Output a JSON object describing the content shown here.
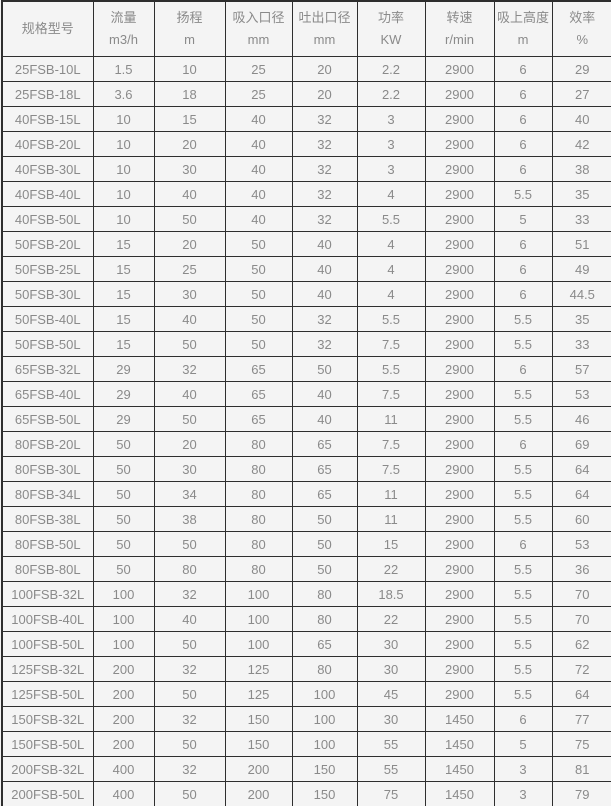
{
  "colors": {
    "cell_background": "#f4f4f4",
    "grid_border": "#2e2e2e",
    "text": "#8a8a8a"
  },
  "chart_data": {
    "type": "table",
    "title": "",
    "columns": [
      {
        "label": "规格型号",
        "unit": ""
      },
      {
        "label": "流量",
        "unit": "m3/h"
      },
      {
        "label": "扬程",
        "unit": "m"
      },
      {
        "label": "吸入口径",
        "unit": "mm"
      },
      {
        "label": "吐出口径",
        "unit": "mm"
      },
      {
        "label": "功率",
        "unit": "KW"
      },
      {
        "label": "转速",
        "unit": "r/min"
      },
      {
        "label": "吸上高度",
        "unit": "m"
      },
      {
        "label": "效率",
        "unit": "%"
      }
    ],
    "rows": [
      [
        "25FSB-10L",
        "1.5",
        "10",
        "25",
        "20",
        "2.2",
        "2900",
        "6",
        "29"
      ],
      [
        "25FSB-18L",
        "3.6",
        "18",
        "25",
        "20",
        "2.2",
        "2900",
        "6",
        "27"
      ],
      [
        "40FSB-15L",
        "10",
        "15",
        "40",
        "32",
        "3",
        "2900",
        "6",
        "40"
      ],
      [
        "40FSB-20L",
        "10",
        "20",
        "40",
        "32",
        "3",
        "2900",
        "6",
        "42"
      ],
      [
        "40FSB-30L",
        "10",
        "30",
        "40",
        "32",
        "3",
        "2900",
        "6",
        "38"
      ],
      [
        "40FSB-40L",
        "10",
        "40",
        "40",
        "32",
        "4",
        "2900",
        "5.5",
        "35"
      ],
      [
        "40FSB-50L",
        "10",
        "50",
        "40",
        "32",
        "5.5",
        "2900",
        "5",
        "33"
      ],
      [
        "50FSB-20L",
        "15",
        "20",
        "50",
        "40",
        "4",
        "2900",
        "6",
        "51"
      ],
      [
        "50FSB-25L",
        "15",
        "25",
        "50",
        "40",
        "4",
        "2900",
        "6",
        "49"
      ],
      [
        "50FSB-30L",
        "15",
        "30",
        "50",
        "40",
        "4",
        "2900",
        "6",
        "44.5"
      ],
      [
        "50FSB-40L",
        "15",
        "40",
        "50",
        "32",
        "5.5",
        "2900",
        "5.5",
        "35"
      ],
      [
        "50FSB-50L",
        "15",
        "50",
        "50",
        "32",
        "7.5",
        "2900",
        "5.5",
        "33"
      ],
      [
        "65FSB-32L",
        "29",
        "32",
        "65",
        "50",
        "5.5",
        "2900",
        "6",
        "57"
      ],
      [
        "65FSB-40L",
        "29",
        "40",
        "65",
        "40",
        "7.5",
        "2900",
        "5.5",
        "53"
      ],
      [
        "65FSB-50L",
        "29",
        "50",
        "65",
        "40",
        "11",
        "2900",
        "5.5",
        "46"
      ],
      [
        "80FSB-20L",
        "50",
        "20",
        "80",
        "65",
        "7.5",
        "2900",
        "6",
        "69"
      ],
      [
        "80FSB-30L",
        "50",
        "30",
        "80",
        "65",
        "7.5",
        "2900",
        "5.5",
        "64"
      ],
      [
        "80FSB-34L",
        "50",
        "34",
        "80",
        "65",
        "11",
        "2900",
        "5.5",
        "64"
      ],
      [
        "80FSB-38L",
        "50",
        "38",
        "80",
        "50",
        "11",
        "2900",
        "5.5",
        "60"
      ],
      [
        "80FSB-50L",
        "50",
        "50",
        "80",
        "50",
        "15",
        "2900",
        "6",
        "53"
      ],
      [
        "80FSB-80L",
        "50",
        "80",
        "80",
        "50",
        "22",
        "2900",
        "5.5",
        "36"
      ],
      [
        "100FSB-32L",
        "100",
        "32",
        "100",
        "80",
        "18.5",
        "2900",
        "5.5",
        "70"
      ],
      [
        "100FSB-40L",
        "100",
        "40",
        "100",
        "80",
        "22",
        "2900",
        "5.5",
        "70"
      ],
      [
        "100FSB-50L",
        "100",
        "50",
        "100",
        "65",
        "30",
        "2900",
        "5.5",
        "62"
      ],
      [
        "125FSB-32L",
        "200",
        "32",
        "125",
        "80",
        "30",
        "2900",
        "5.5",
        "72"
      ],
      [
        "125FSB-50L",
        "200",
        "50",
        "125",
        "100",
        "45",
        "2900",
        "5.5",
        "64"
      ],
      [
        "150FSB-32L",
        "200",
        "32",
        "150",
        "100",
        "30",
        "1450",
        "6",
        "77"
      ],
      [
        "150FSB-50L",
        "200",
        "50",
        "150",
        "100",
        "55",
        "1450",
        "5",
        "75"
      ],
      [
        "200FSB-32L",
        "400",
        "32",
        "200",
        "150",
        "55",
        "1450",
        "3",
        "81"
      ],
      [
        "200FSB-50L",
        "400",
        "50",
        "200",
        "150",
        "75",
        "1450",
        "3",
        "79"
      ]
    ]
  }
}
